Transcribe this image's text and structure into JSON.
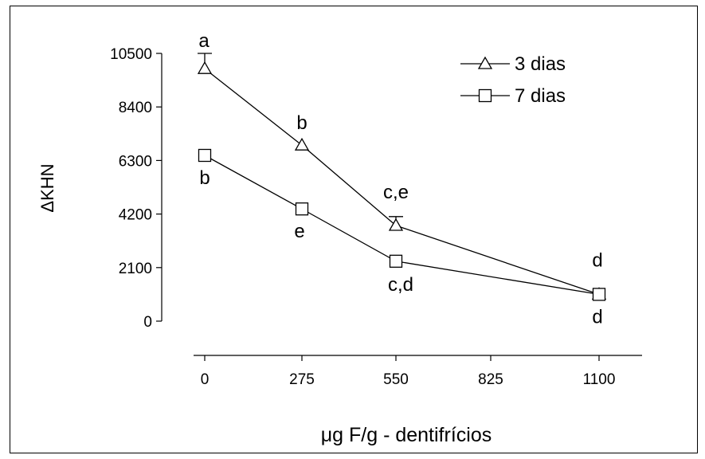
{
  "chart_data": {
    "type": "line",
    "ylabel": "ΔKHN",
    "xlabel": "μg F/g - dentifrícios",
    "xticks": [
      "0",
      "275",
      "550",
      "825",
      "1100"
    ],
    "yticks": [
      "0",
      "2100",
      "4200",
      "6300",
      "8400",
      "10500"
    ],
    "xlim": [
      0,
      1100
    ],
    "ylim": [
      0,
      10500
    ],
    "legend_position": "top-right",
    "series": [
      {
        "name": "3 dias",
        "marker": "triangle",
        "x": [
          0,
          275,
          550,
          1100
        ],
        "y": [
          9900,
          6900,
          3750,
          1050
        ],
        "err": [
          600,
          0,
          350,
          0
        ],
        "labels": [
          "a",
          "b",
          "c,e",
          "d"
        ]
      },
      {
        "name": "7 dias",
        "marker": "square",
        "x": [
          0,
          275,
          550,
          1100
        ],
        "y": [
          6500,
          4400,
          2350,
          1050
        ],
        "err": [
          0,
          0,
          0,
          0
        ],
        "labels": [
          "b",
          "e",
          "c,d",
          "d"
        ]
      }
    ]
  }
}
